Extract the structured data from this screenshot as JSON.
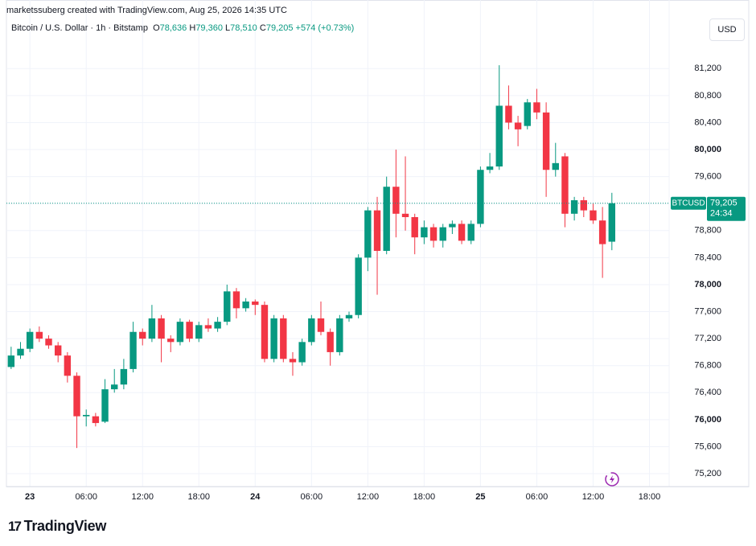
{
  "header": {
    "attribution": "marketssuberg created with TradingView.com, Aug 25, 2026 14:35 UTC",
    "symbol": "Bitcoin / U.S. Dollar · 1h · Bitstamp",
    "o_label": "O",
    "o_value": "78,636",
    "h_label": "H",
    "h_value": "79,360",
    "l_label": "L",
    "l_value": "78,510",
    "c_label": "C",
    "c_value": "79,205",
    "change": "+574 (+0.73%)",
    "currency": "USD"
  },
  "footer": {
    "logo": "TradingView"
  },
  "chart_data": {
    "type": "candlestick",
    "x": [
      -2,
      -1,
      0,
      1,
      2,
      3,
      4,
      5,
      6,
      7,
      8,
      9,
      10,
      11,
      12,
      13,
      14,
      15,
      16,
      17,
      18,
      19,
      20,
      21,
      22,
      23,
      24,
      25,
      26,
      27,
      28,
      29,
      30,
      31,
      32,
      33,
      34,
      35,
      36,
      37,
      38,
      39,
      40,
      41,
      42,
      43,
      44,
      45,
      46,
      47,
      48,
      49,
      50,
      51,
      52,
      53,
      54,
      55,
      56,
      57,
      58,
      59,
      60,
      61,
      62
    ],
    "open": [
      76780,
      76950,
      77050,
      77300,
      77200,
      77100,
      76950,
      76650,
      76050,
      76050,
      75970,
      76450,
      76520,
      76750,
      77300,
      77200,
      77500,
      77200,
      77150,
      77450,
      77200,
      77400,
      77350,
      77450,
      77900,
      77650,
      77750,
      77700,
      76900,
      77500,
      76900,
      76850,
      77150,
      77500,
      77300,
      77000,
      77500,
      77550,
      78400,
      79100,
      78500,
      79450,
      79050,
      79000,
      78700,
      78850,
      78650,
      78850,
      78900,
      78650,
      78900,
      79700,
      79750,
      80650,
      80400,
      80350,
      80700,
      80550,
      79700,
      79900,
      79050,
      79250,
      79100,
      78950,
      78636
    ],
    "high": [
      77080,
      77150,
      77350,
      77380,
      77250,
      77150,
      77000,
      76700,
      76150,
      76100,
      76600,
      76750,
      76900,
      77450,
      77350,
      77700,
      77550,
      77250,
      77500,
      77480,
      77450,
      77500,
      77520,
      78000,
      77950,
      77800,
      77780,
      77750,
      77550,
      77550,
      77000,
      77200,
      77550,
      77750,
      77350,
      77550,
      77600,
      78450,
      79150,
      79300,
      79600,
      80000,
      79900,
      79050,
      78950,
      78900,
      78900,
      78950,
      78950,
      78950,
      79750,
      79950,
      81250,
      80950,
      80500,
      80750,
      80900,
      80700,
      80100,
      79950,
      79300,
      79300,
      79200,
      79150,
      79360
    ],
    "low": [
      76750,
      76900,
      77000,
      77150,
      77050,
      76850,
      76550,
      75580,
      75900,
      75900,
      75950,
      76400,
      76450,
      76700,
      77100,
      77150,
      76850,
      77000,
      77100,
      77150,
      77150,
      77300,
      77300,
      77400,
      77500,
      77600,
      77550,
      76850,
      76850,
      76850,
      76650,
      76800,
      77100,
      77250,
      76800,
      76950,
      77450,
      77500,
      78200,
      77850,
      78450,
      78700,
      78800,
      78450,
      78600,
      78550,
      78550,
      78750,
      78600,
      78600,
      78850,
      79650,
      79700,
      80300,
      80050,
      80300,
      80450,
      79300,
      79600,
      78850,
      78950,
      79000,
      78900,
      78100,
      78510
    ],
    "close": [
      76950,
      77050,
      77300,
      77200,
      77100,
      76950,
      76650,
      76050,
      76070,
      75950,
      76450,
      76520,
      76750,
      77300,
      77200,
      77500,
      77200,
      77150,
      77450,
      77200,
      77400,
      77350,
      77450,
      77900,
      77650,
      77750,
      77700,
      76900,
      77500,
      76900,
      76850,
      77150,
      77500,
      77300,
      77000,
      77500,
      77550,
      78400,
      79100,
      78500,
      79450,
      79050,
      79000,
      78700,
      78850,
      78650,
      78850,
      78900,
      78650,
      78900,
      79700,
      79750,
      80650,
      80400,
      80300,
      80700,
      80550,
      79700,
      79800,
      79050,
      79250,
      79100,
      78950,
      78600,
      79205
    ],
    "up_color": "#089981",
    "down_color": "#f23645",
    "xlim": [
      -2.5,
      68.1
    ],
    "xticks": [
      {
        "value": 0,
        "label": "23",
        "bold": true
      },
      {
        "value": 6,
        "label": "06:00"
      },
      {
        "value": 12,
        "label": "12:00"
      },
      {
        "value": 18,
        "label": "18:00"
      },
      {
        "value": 24,
        "label": "24",
        "bold": true
      },
      {
        "value": 30,
        "label": "06:00"
      },
      {
        "value": 36,
        "label": "12:00"
      },
      {
        "value": 42,
        "label": "18:00"
      },
      {
        "value": 48,
        "label": "25",
        "bold": true
      },
      {
        "value": 54,
        "label": "06:00"
      },
      {
        "value": 60,
        "label": "12:00"
      },
      {
        "value": 66,
        "label": "18:00"
      }
    ],
    "ylim": [
      75010,
      81680
    ],
    "yticks": [
      {
        "value": 75200,
        "label": "75,200"
      },
      {
        "value": 75600,
        "label": "75,600"
      },
      {
        "value": 76000,
        "label": "76,000",
        "bold": true
      },
      {
        "value": 76400,
        "label": "76,400"
      },
      {
        "value": 76800,
        "label": "76,800"
      },
      {
        "value": 77200,
        "label": "77,200"
      },
      {
        "value": 77600,
        "label": "77,600"
      },
      {
        "value": 78000,
        "label": "78,000",
        "bold": true
      },
      {
        "value": 78400,
        "label": "78,400"
      },
      {
        "value": 78800,
        "label": "78,800"
      },
      {
        "value": 79200,
        "label": "79,200"
      },
      {
        "value": 79600,
        "label": "79,600"
      },
      {
        "value": 80000,
        "label": "80,000",
        "bold": true
      },
      {
        "value": 80400,
        "label": "80,400"
      },
      {
        "value": 80800,
        "label": "80,800"
      },
      {
        "value": 81200,
        "label": "81,200"
      }
    ],
    "grid": true,
    "price_tag": {
      "symbol": "BTCUSD",
      "price": "79,205",
      "countdown": "24:34"
    }
  }
}
